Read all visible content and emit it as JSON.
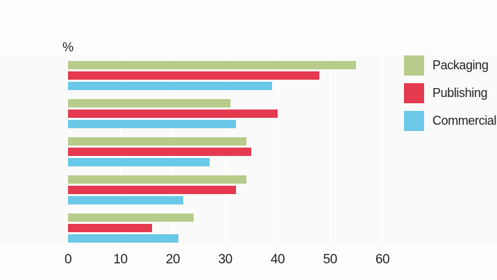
{
  "chart_data": {
    "type": "bar",
    "orientation": "horizontal",
    "title": "",
    "unit_label": "%",
    "xlabel": "",
    "ylabel": "",
    "xlim": [
      0,
      60
    ],
    "xticks": [
      0,
      10,
      20,
      30,
      40,
      50,
      60
    ],
    "grid": true,
    "legend_position": "top-right",
    "categories": [
      "",
      "",
      "",
      "",
      ""
    ],
    "series": [
      {
        "name": "Packaging",
        "color": "#b7cc8a",
        "values": [
          55,
          31,
          34,
          34,
          24
        ]
      },
      {
        "name": "Publishing",
        "color": "#e5394f",
        "values": [
          48,
          40,
          35,
          32,
          16
        ]
      },
      {
        "name": "Commercial",
        "color": "#6ac8e8",
        "values": [
          39,
          32,
          27,
          22,
          21
        ]
      }
    ]
  },
  "layout_colors": {
    "plot_background": "#fafafa",
    "gridline": "#ffffff",
    "text": "#262626"
  }
}
